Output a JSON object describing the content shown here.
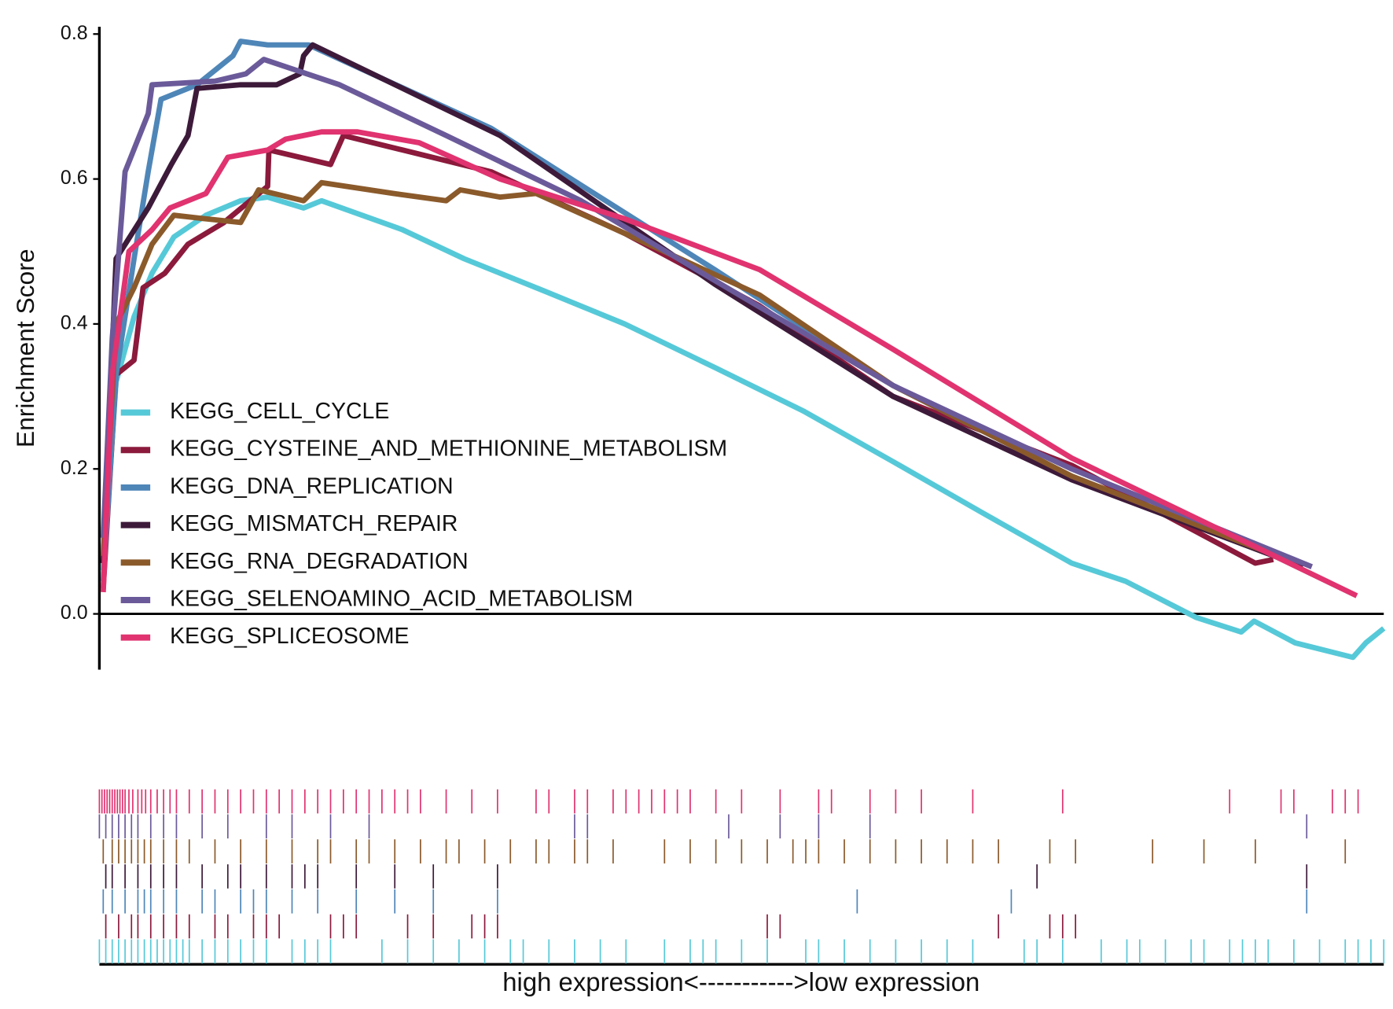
{
  "chart_data": {
    "type": "line",
    "ylabel": "Enrichment Score",
    "xlabel": "high expression<----------->low expression",
    "xlim": [
      0,
      100
    ],
    "ylim": [
      -0.077,
      0.81
    ],
    "yticks": [
      {
        "value": 0,
        "label": "0.0"
      },
      0.2,
      0.4,
      0.6,
      0.8
    ],
    "legend": "left",
    "series": [
      {
        "name": "KEGG_CELL_CYCLE",
        "color": "#56c9d8",
        "x": [
          0.3,
          1.3,
          2.7,
          4.1,
          5.8,
          8.3,
          11.0,
          13.1,
          15.9,
          17.3,
          23.6,
          28.4,
          34.7,
          40.9,
          47.9,
          54.8,
          61.8,
          68.7,
          75.7,
          79.9,
          85.4,
          88.9,
          89.9,
          93.1,
          97.6,
          98.6,
          100
        ],
        "values": [
          0.06,
          0.32,
          0.41,
          0.47,
          0.52,
          0.55,
          0.57,
          0.575,
          0.56,
          0.57,
          0.53,
          0.49,
          0.445,
          0.4,
          0.34,
          0.28,
          0.21,
          0.14,
          0.07,
          0.045,
          -0.005,
          -0.025,
          -0.01,
          -0.04,
          -0.06,
          -0.04,
          -0.02
        ],
        "hits": [
          0,
          0.5,
          1,
          1.5,
          2,
          2.5,
          3,
          3.5,
          4,
          4.5,
          5,
          5.5,
          6,
          6.5,
          7,
          8,
          9,
          10,
          11,
          12,
          13,
          15,
          16,
          17,
          18,
          22,
          24,
          26,
          28,
          30,
          32,
          33,
          35,
          37,
          39,
          41,
          44,
          46,
          47,
          48,
          50,
          52,
          55,
          56,
          58,
          60,
          62,
          64,
          66,
          68,
          72,
          73,
          75,
          78,
          80,
          81,
          83,
          85,
          86,
          88,
          89,
          90,
          91,
          93,
          95,
          97,
          98,
          99,
          100
        ]
      },
      {
        "name": "KEGG_CYSTEINE_AND_METHIONINE_METABOLISM",
        "color": "#8b1a3c",
        "x": [
          0.3,
          1.3,
          2.7,
          3.4,
          5.1,
          6.9,
          9.7,
          13.1,
          13.2,
          18.0,
          19.0,
          23.6,
          30.5,
          40.9,
          51.4,
          61.8,
          75.7,
          90.0,
          91.4
        ],
        "values": [
          0.035,
          0.33,
          0.35,
          0.45,
          0.47,
          0.51,
          0.54,
          0.59,
          0.64,
          0.62,
          0.66,
          0.64,
          0.61,
          0.525,
          0.425,
          0.3,
          0.205,
          0.07,
          0.075
        ],
        "hits": [
          0.5,
          1.5,
          2.5,
          3,
          4,
          5,
          6,
          7,
          9,
          10,
          12,
          13,
          14,
          18,
          19,
          20,
          24,
          26,
          29,
          30,
          31,
          52,
          53,
          70,
          74,
          75,
          76
        ]
      },
      {
        "name": "KEGG_DNA_REPLICATION",
        "color": "#4f86b8",
        "x": [
          0.3,
          1.3,
          2.7,
          3.8,
          4.8,
          7.6,
          10.4,
          11.0,
          13.1,
          16.3,
          30.5,
          47.9,
          61.8,
          75.7,
          93.7
        ],
        "values": [
          0.045,
          0.33,
          0.49,
          0.61,
          0.71,
          0.73,
          0.77,
          0.79,
          0.785,
          0.785,
          0.67,
          0.475,
          0.315,
          0.19,
          0.065
        ],
        "hits": [
          0.3,
          1,
          2,
          3,
          3.5,
          4,
          5,
          6,
          8,
          9,
          11,
          12,
          13,
          15,
          17,
          20,
          23,
          26,
          31,
          59,
          71,
          94
        ]
      },
      {
        "name": "KEGG_MISMATCH_REPAIR",
        "color": "#3d1a3a",
        "x": [
          0.3,
          1.3,
          3.8,
          5.6,
          6.9,
          7.6,
          11.0,
          13.8,
          15.6,
          15.9,
          16.6,
          31.2,
          47.9,
          61.8,
          75.7,
          93.7
        ],
        "values": [
          0.07,
          0.49,
          0.56,
          0.62,
          0.66,
          0.725,
          0.73,
          0.73,
          0.745,
          0.77,
          0.785,
          0.66,
          0.455,
          0.3,
          0.185,
          0.065
        ],
        "hits": [
          0.5,
          1,
          2,
          3,
          4,
          5,
          6,
          8,
          10,
          11,
          13,
          15,
          16,
          17,
          20,
          23,
          26,
          31,
          73,
          94
        ]
      },
      {
        "name": "KEGG_RNA_DEGRADATION",
        "color": "#8b5a2b",
        "x": [
          0.3,
          1.3,
          2.7,
          4.1,
          5.8,
          8.3,
          11.0,
          12.4,
          15.9,
          17.3,
          22.9,
          27.0,
          28.1,
          31.2,
          34.0,
          40.9,
          51.4,
          61.8,
          75.7,
          92.4
        ],
        "values": [
          0.08,
          0.4,
          0.45,
          0.51,
          0.55,
          0.545,
          0.54,
          0.585,
          0.57,
          0.595,
          0.58,
          0.57,
          0.585,
          0.575,
          0.58,
          0.525,
          0.44,
          0.315,
          0.19,
          0.075
        ],
        "hits": [
          0.3,
          1,
          1.5,
          2,
          2.5,
          3,
          3.5,
          4,
          5,
          6,
          7,
          9,
          11,
          13,
          15,
          17,
          18,
          20,
          21,
          23,
          25,
          27,
          28,
          30,
          32,
          34,
          35,
          37,
          38,
          40,
          44,
          46,
          48,
          50,
          52,
          54,
          55,
          56,
          58,
          60,
          62,
          64,
          66,
          68,
          70,
          74,
          76,
          82,
          86,
          90,
          97
        ]
      },
      {
        "name": "KEGG_SELENOAMINO_ACID_METABOLISM",
        "color": "#6b5a9a",
        "x": [
          0.3,
          1.0,
          2.0,
          3.8,
          4.1,
          9.0,
          11.4,
          12.8,
          18.7,
          27.0,
          37.5,
          47.9,
          61.8,
          75.7,
          94.4
        ],
        "values": [
          0.105,
          0.38,
          0.61,
          0.69,
          0.73,
          0.735,
          0.745,
          0.765,
          0.73,
          0.66,
          0.57,
          0.46,
          0.315,
          0.2,
          0.065
        ],
        "hits": [
          0,
          0.5,
          1,
          1.5,
          2,
          2.5,
          3,
          4,
          5,
          6,
          8,
          10,
          13,
          15,
          18,
          21,
          37,
          38,
          49,
          53,
          56,
          60,
          94
        ]
      },
      {
        "name": "KEGG_SPLICEOSOME",
        "color": "#e0336f",
        "x": [
          0.3,
          1.0,
          2.3,
          4.1,
          5.5,
          8.3,
          10.0,
          13.1,
          14.5,
          17.3,
          20.1,
          24.9,
          31.2,
          40.9,
          51.4,
          61.8,
          75.7,
          97.9
        ],
        "values": [
          0.03,
          0.33,
          0.5,
          0.53,
          0.56,
          0.58,
          0.63,
          0.64,
          0.655,
          0.665,
          0.665,
          0.65,
          0.6,
          0.545,
          0.475,
          0.365,
          0.215,
          0.025
        ],
        "hits": [
          0,
          0.2,
          0.4,
          0.6,
          0.8,
          1,
          1.2,
          1.4,
          1.6,
          1.8,
          2,
          2.3,
          2.6,
          3,
          3.3,
          3.6,
          4,
          4.5,
          5,
          5.5,
          6,
          7,
          8,
          9,
          10,
          11,
          12,
          13,
          14,
          15,
          16,
          17,
          18,
          19,
          20,
          21,
          22,
          23,
          24,
          25,
          27,
          29,
          31,
          34,
          35,
          37,
          38,
          40,
          41,
          42,
          43,
          44,
          45,
          46,
          48,
          50,
          53,
          56,
          57,
          60,
          62,
          64,
          68,
          75,
          88,
          92,
          93,
          96,
          97,
          98
        ]
      }
    ]
  }
}
